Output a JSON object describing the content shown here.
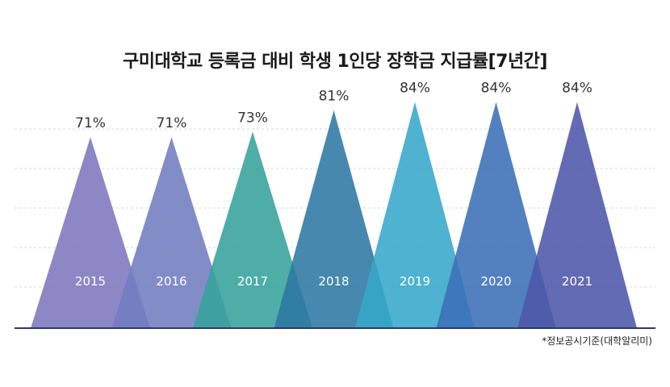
{
  "chart_data": {
    "type": "area",
    "title": "구미대학교 등록금 대비 학생 1인당 장학금 지급률[7년간]",
    "categories": [
      "2015",
      "2016",
      "2017",
      "2018",
      "2019",
      "2020",
      "2021"
    ],
    "values": [
      71,
      71,
      73,
      81,
      84,
      84,
      84
    ],
    "value_labels": [
      "71%",
      "71%",
      "73%",
      "81%",
      "84%",
      "84%",
      "84%"
    ],
    "colors": [
      "#7e76be",
      "#717dc0",
      "#36a39b",
      "#2d77a3",
      "#36a7c9",
      "#3b6fb6",
      "#4d56aa"
    ],
    "unit": "%",
    "ylim": [
      0,
      100
    ],
    "grid": true,
    "xlabel": "",
    "ylabel": ""
  },
  "footer": {
    "source": "*정보공시기준(대학알리미)"
  }
}
